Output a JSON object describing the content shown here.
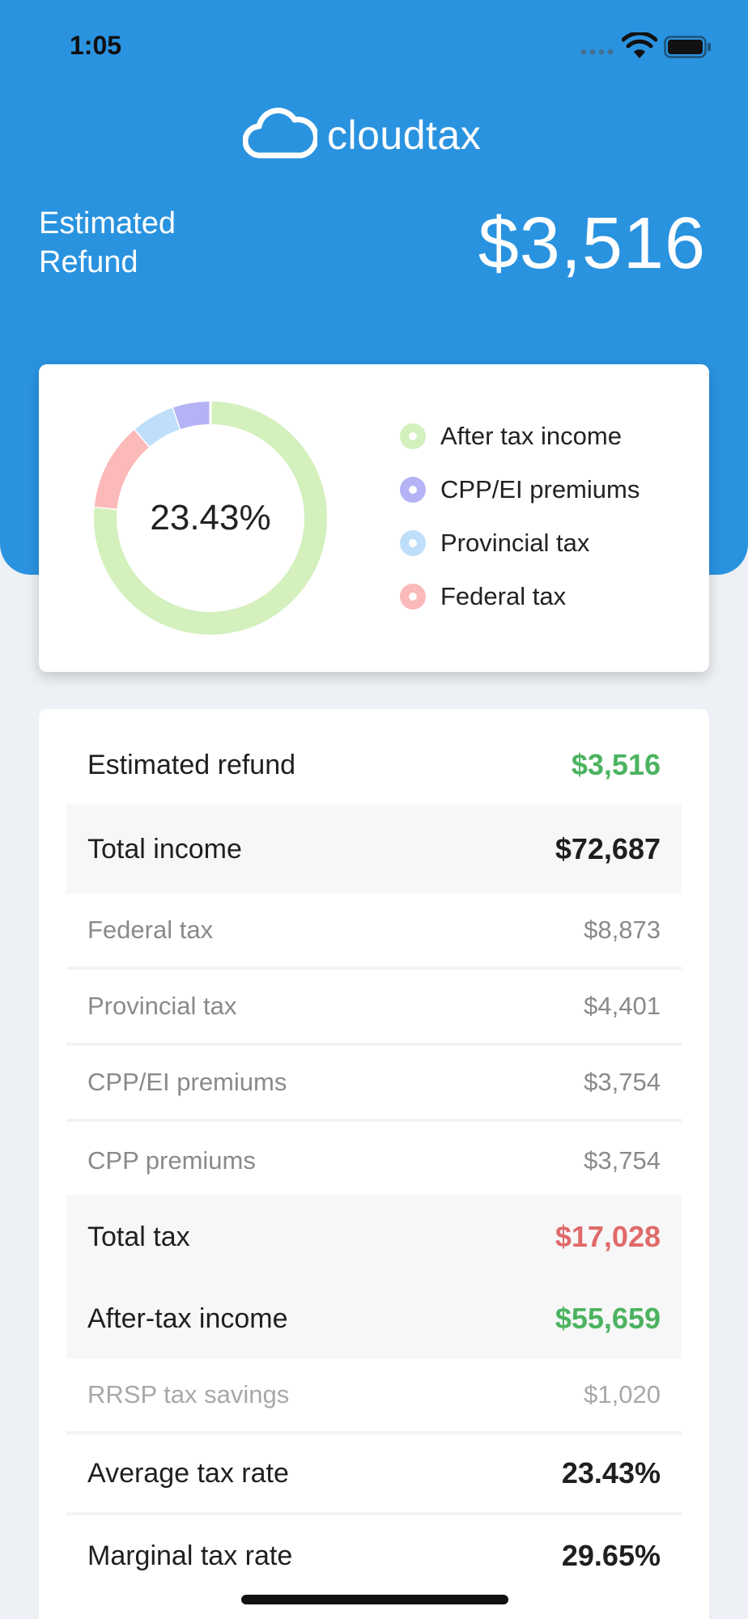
{
  "status_bar": {
    "time": "1:05"
  },
  "brand": {
    "name": "cloudtax"
  },
  "summary": {
    "label_line1": "Estimated",
    "label_line2": "Refund",
    "amount": "$3,516"
  },
  "chart_data": {
    "type": "pie",
    "center_label": "23.43%",
    "categories": [
      "After tax income",
      "CPP/EI premiums",
      "Provincial tax",
      "Federal tax"
    ],
    "values": [
      76.57,
      5.16,
      6.05,
      12.21
    ],
    "colors": [
      "#d3f0bd",
      "#b5b3f5",
      "#bfdef9",
      "#fcb9b9"
    ]
  },
  "details": {
    "rows": [
      {
        "label": "Estimated refund",
        "value": "$3,516",
        "value_color": "#4cb360"
      },
      {
        "label": "Total income",
        "value": "$72,687",
        "value_color": "#1f1f1f"
      },
      {
        "label": "Federal tax",
        "value": "$8,873"
      },
      {
        "label": "Provincial tax",
        "value": "$4,401"
      },
      {
        "label": "CPP/EI premiums",
        "value": "$3,754"
      },
      {
        "label": "CPP premiums",
        "value": "$3,754"
      },
      {
        "label": "Total tax",
        "value": "$17,028",
        "value_color": "#e06a6a"
      },
      {
        "label": "After-tax income",
        "value": "$55,659",
        "value_color": "#4cb360"
      },
      {
        "label": "RRSP tax savings",
        "value": "$1,020"
      },
      {
        "label": "Average tax rate",
        "value": "23.43%",
        "value_color": "#1f1f1f"
      },
      {
        "label": "Marginal tax rate",
        "value": "29.65%",
        "value_color": "#1f1f1f"
      }
    ]
  }
}
